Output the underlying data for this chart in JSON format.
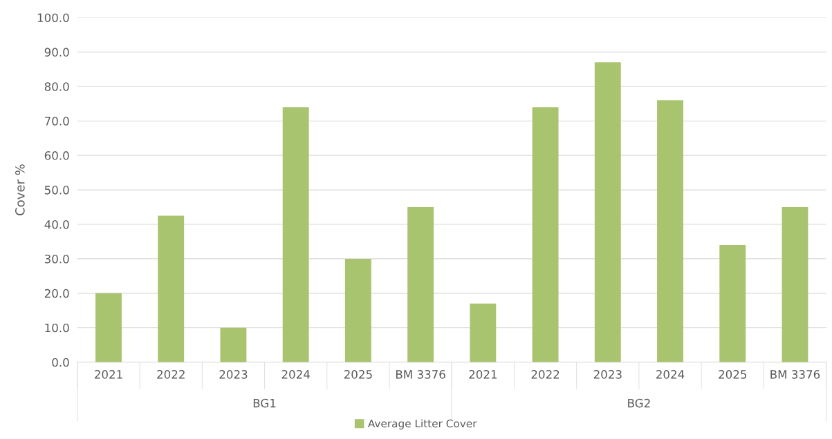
{
  "chart_data": {
    "type": "bar",
    "categories": [
      "2021",
      "2022",
      "2023",
      "2024",
      "2025",
      "BM 3376",
      "2021",
      "2022",
      "2023",
      "2024",
      "2025",
      "BM 3376"
    ],
    "series": [
      {
        "name": "Average Litter Cover",
        "color": "#a9c46f",
        "values": [
          20,
          42.5,
          10,
          74,
          30,
          45,
          17,
          74,
          87,
          76,
          34,
          45
        ]
      }
    ],
    "ylabel": "Cover %",
    "annotations": [
      "BG1",
      "BG2"
    ],
    "ylim": [
      0,
      100
    ],
    "yticks": [
      {
        "value": 0,
        "label": "0.0"
      },
      {
        "value": 10,
        "label": "10.0"
      },
      {
        "value": 20,
        "label": "20.0"
      },
      {
        "value": 30,
        "label": "30.0"
      },
      {
        "value": 40,
        "label": "40.0"
      },
      {
        "value": 50,
        "label": "50.0"
      },
      {
        "value": 60,
        "label": "60.0"
      },
      {
        "value": 70,
        "label": "70.0"
      },
      {
        "value": 80,
        "label": "80.0"
      },
      {
        "value": 90,
        "label": "90.0"
      },
      {
        "value": 100,
        "label": "100.0"
      }
    ],
    "grid": "y",
    "legend": "bottom"
  }
}
